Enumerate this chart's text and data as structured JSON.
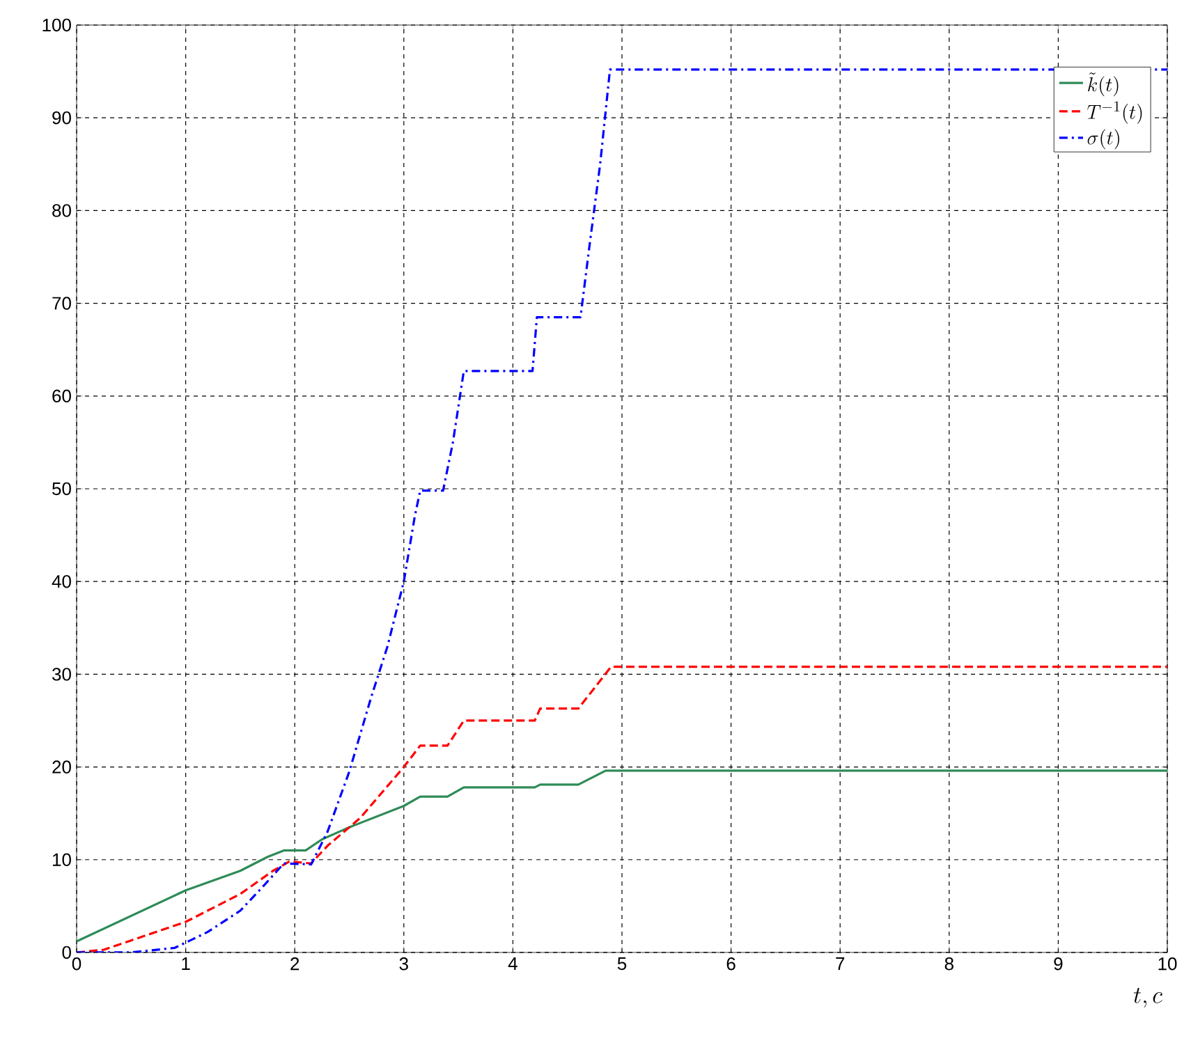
{
  "chart_data": {
    "type": "line",
    "xlabel": "t,c",
    "xlim": [
      0,
      10
    ],
    "ylim": [
      0,
      100
    ],
    "xticks": [
      0,
      1,
      2,
      3,
      4,
      5,
      6,
      7,
      8,
      9,
      10
    ],
    "yticks": [
      0,
      10,
      20,
      30,
      40,
      50,
      60,
      70,
      80,
      90,
      100
    ],
    "grid": true,
    "legend": "top right",
    "series": [
      {
        "name": "\\tilde{k}(t)",
        "color": "#2e8b57",
        "line_style": "solid",
        "x": [
          0,
          1,
          1.5,
          1.75,
          1.9,
          2.1,
          2.25,
          2.5,
          3,
          3.15,
          3.4,
          3.55,
          4.2,
          4.25,
          4.6,
          4.85,
          10
        ],
        "values": [
          1.2,
          6.7,
          8.8,
          10.3,
          11,
          11,
          12.2,
          13.5,
          15.8,
          16.8,
          16.8,
          17.8,
          17.8,
          18.1,
          18.1,
          19.6,
          19.6
        ]
      },
      {
        "name": "T^{-1}(t)",
        "color": "#ff0000",
        "line_style": "dashed",
        "x": [
          0,
          0.25,
          0.5,
          1,
          1.5,
          1.8,
          1.95,
          2.15,
          2.3,
          2.6,
          3,
          3.15,
          3.4,
          3.55,
          4.2,
          4.25,
          4.6,
          4.9,
          10
        ],
        "values": [
          0,
          0.3,
          1.3,
          3.3,
          6.3,
          8.8,
          9.8,
          9.6,
          11.5,
          14.5,
          20,
          22.3,
          22.3,
          25,
          25,
          26.3,
          26.3,
          30.8,
          30.8
        ]
      },
      {
        "name": "\\sigma(t)",
        "color": "#0000ff",
        "line_style": "dashdot",
        "x": [
          0,
          0.5,
          0.9,
          1.2,
          1.5,
          1.7,
          1.9,
          2.15,
          2.3,
          2.5,
          2.7,
          2.85,
          3,
          3.1,
          3.15,
          3.36,
          3.45,
          3.55,
          4.18,
          4.22,
          4.62,
          4.7,
          4.8,
          4.89,
          10
        ],
        "values": [
          0,
          0,
          0.5,
          2.2,
          4.5,
          7,
          9.6,
          9.5,
          13,
          19.5,
          27.5,
          33,
          40,
          47,
          49.8,
          49.8,
          55,
          62.7,
          62.7,
          68.5,
          68.5,
          76,
          85,
          95.2,
          95.2
        ]
      }
    ]
  }
}
